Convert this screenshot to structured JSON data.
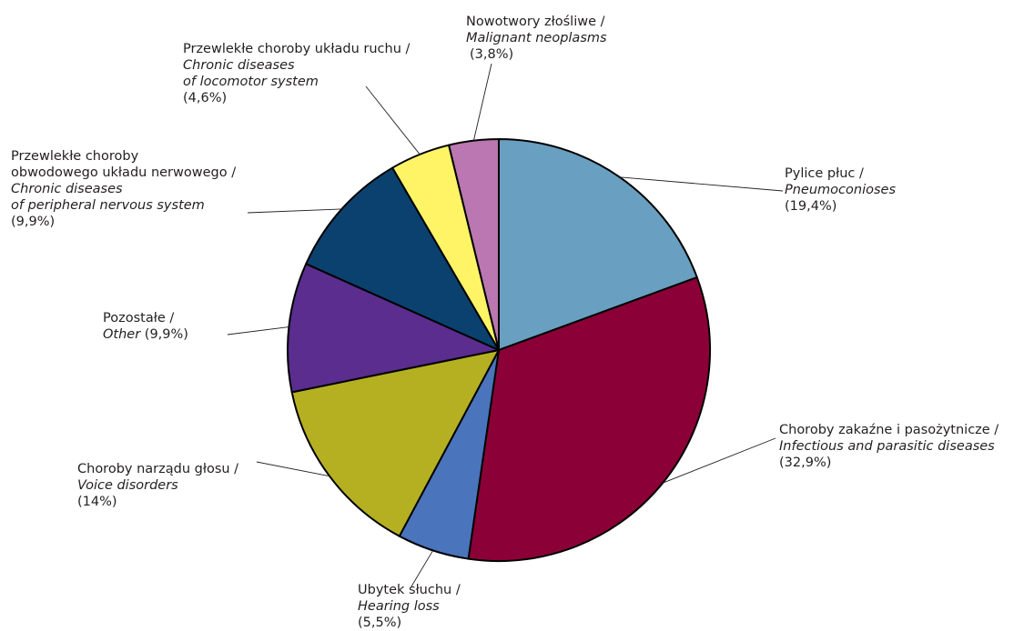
{
  "chart_data": {
    "type": "pie",
    "slices": [
      {
        "pl": "Pylice płuc /",
        "en": "Pneumoconioses",
        "pct_label": "(19,4%)",
        "value": 19.4,
        "color": "#699fc0"
      },
      {
        "pl": "Choroby zakaźne i pasożytnicze /",
        "en": "Infectious and parasitic diseases",
        "pct_label": "(32,9%)",
        "value": 32.9,
        "color": "#8b0036"
      },
      {
        "pl": "Ubytek słuchu /",
        "en": "Hearing loss",
        "pct_label": "(5,5%)",
        "value": 5.5,
        "color": "#4a74bb"
      },
      {
        "pl": "Choroby narządu głosu /",
        "en": "Voice disorders",
        "pct_label": "(14%)",
        "value": 14.0,
        "color": "#b5b022"
      },
      {
        "pl": "Pozostałe /",
        "en": "Other",
        "pct_label": "(9,9%)",
        "value": 9.9,
        "color": "#5a2d8e"
      },
      {
        "pl": "Przewlekłe choroby obwodowego układu nerwowego /",
        "en": "Chronic diseases of peripheral nervous system",
        "pct_label": "(9,9%)",
        "value": 9.9,
        "color": "#0b416e"
      },
      {
        "pl": "Przewlekłe choroby układu ruchu /",
        "en": "Chronic diseases of locomotor system",
        "pct_label": "(4,6%)",
        "value": 4.6,
        "color": "#fef465"
      },
      {
        "pl": "Nowotwory złośliwe /",
        "en": "Malignant neoplasms",
        "pct_label": "(3,8%)",
        "value": 3.8,
        "color": "#bb77b1"
      }
    ]
  },
  "labels": {
    "pneumoconioses": {
      "line1": "Pylice płuc /",
      "line2": "Pneumoconioses",
      "line3": "(19,4%)"
    },
    "infectious": {
      "line1": "Choroby zakaźne i pasożytnicze /",
      "line2": "Infectious and parasitic diseases",
      "line3": "(32,9%)"
    },
    "hearing": {
      "line1": "Ubytek słuchu /",
      "line2": "Hearing loss",
      "line3": "(5,5%)"
    },
    "voice": {
      "line1": "Choroby narządu głosu /",
      "line2": "Voice disorders",
      "line3": "(14%)"
    },
    "other": {
      "line1": "Pozostałe /",
      "line2": "Other",
      "line3": "(9,9%)"
    },
    "nervous": {
      "line1": "Przewlekłe choroby",
      "line2": "obwodowego układu nerwowego /",
      "line3": "Chronic diseases",
      "line4": "of peripheral nervous system",
      "line5": "(9,9%)"
    },
    "locomotor": {
      "line1": "Przewlekłe choroby układu ruchu /",
      "line2": "Chronic diseases",
      "line3": "of locomotor system",
      "line4": "(4,6%)"
    },
    "neoplasms": {
      "line1": "Nowotwory złośliwe /",
      "line2": "Malignant neoplasms",
      "line3": "(3,8%)"
    }
  }
}
